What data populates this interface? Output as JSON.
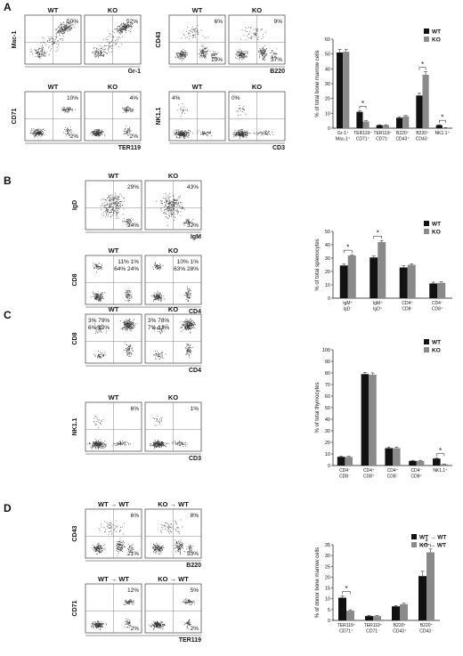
{
  "panels": [
    {
      "letter": "A",
      "rows": [
        {
          "plots": [
            {
              "title": "WT",
              "ylabel": "Mac-1",
              "xlabel": "",
              "quad_labels": [
                {
                  "pos": "tr",
                  "text": "50%"
                }
              ],
              "shape": "granulocyte"
            },
            {
              "title": "KO",
              "ylabel": "",
              "xlabel": "",
              "quad_labels": [
                {
                  "pos": "tr",
                  "text": "52%"
                }
              ],
              "shape": "granulocyte"
            }
          ],
          "shared_xlabel": "Gr-1"
        },
        {
          "plots": [
            {
              "title": "WT",
              "ylabel": "CD43",
              "xlabel": "",
              "quad_labels": [
                {
                  "pos": "tr",
                  "text": "6%"
                },
                {
                  "pos": "br",
                  "text": "19%"
                }
              ],
              "shape": "bcell"
            },
            {
              "title": "KO",
              "ylabel": "",
              "xlabel": "",
              "quad_labels": [
                {
                  "pos": "tr",
                  "text": "9%"
                },
                {
                  "pos": "br",
                  "text": "37%"
                }
              ],
              "shape": "bcell"
            }
          ],
          "shared_xlabel": "B220"
        },
        {
          "plots": [
            {
              "title": "WT",
              "ylabel": "CD71",
              "xlabel": "",
              "quad_labels": [
                {
                  "pos": "tr",
                  "text": "10%"
                },
                {
                  "pos": "br",
                  "text": "2%"
                }
              ],
              "shape": "erythroid"
            },
            {
              "title": "KO",
              "ylabel": "",
              "xlabel": "",
              "quad_labels": [
                {
                  "pos": "tr",
                  "text": "4%"
                },
                {
                  "pos": "br",
                  "text": "2%"
                }
              ],
              "shape": "erythroid"
            }
          ],
          "shared_xlabel": "TER119"
        },
        {
          "plots": [
            {
              "title": "WT",
              "ylabel": "NK1.1",
              "xlabel": "",
              "quad_labels": [
                {
                  "pos": "tl",
                  "text": "4%"
                }
              ],
              "shape": "nk"
            },
            {
              "title": "KO",
              "ylabel": "",
              "xlabel": "",
              "quad_labels": [
                {
                  "pos": "tl",
                  "text": "0%"
                }
              ],
              "shape": "nk"
            }
          ],
          "shared_xlabel": "CD3"
        }
      ]
    },
    {
      "letter": "B",
      "rows": [
        {
          "plots": [
            {
              "title": "WT",
              "ylabel": "IgD",
              "xlabel": "",
              "quad_labels": [
                {
                  "pos": "tr",
                  "text": "29%"
                },
                {
                  "pos": "br",
                  "text": "24%"
                }
              ],
              "shape": "igm"
            },
            {
              "title": "KO",
              "ylabel": "",
              "xlabel": "",
              "quad_labels": [
                {
                  "pos": "tr",
                  "text": "43%"
                },
                {
                  "pos": "br",
                  "text": "32%"
                }
              ],
              "shape": "igm"
            }
          ],
          "shared_xlabel": "IgM"
        },
        {
          "plots": [
            {
              "title": "WT",
              "ylabel": "CD8",
              "xlabel": "",
              "quad_labels": [
                {
                  "pos": "tr4",
                  "text": "11%  1%"
                },
                {
                  "pos": "tr4b",
                  "text": "64%  24%"
                }
              ],
              "shape": "spleen_cd4cd8"
            },
            {
              "title": "KO",
              "ylabel": "",
              "xlabel": "",
              "quad_labels": [
                {
                  "pos": "tr4",
                  "text": "10%  1%"
                },
                {
                  "pos": "tr4b",
                  "text": "63%  28%"
                }
              ],
              "shape": "spleen_cd4cd8"
            }
          ],
          "shared_xlabel": "CD4"
        }
      ]
    },
    {
      "letter": "C",
      "rows": [
        {
          "plots": [
            {
              "title": "WT",
              "ylabel": "CD8",
              "xlabel": "",
              "quad_labels": [
                {
                  "pos": "tl4",
                  "text": "3%  79%"
                },
                {
                  "pos": "tl4b",
                  "text": "6%  12%"
                }
              ],
              "shape": "thymus"
            },
            {
              "title": "KO",
              "ylabel": "",
              "xlabel": "",
              "quad_labels": [
                {
                  "pos": "tl4",
                  "text": "3%  78%"
                },
                {
                  "pos": "tl4b",
                  "text": "7%  13%"
                }
              ],
              "shape": "thymus"
            }
          ],
          "shared_xlabel": "CD4"
        },
        {
          "plots": [
            {
              "title": "WT",
              "ylabel": "NK1.1",
              "xlabel": "",
              "quad_labels": [
                {
                  "pos": "tr",
                  "text": "6%"
                }
              ],
              "shape": "nk"
            },
            {
              "title": "KO",
              "ylabel": "",
              "xlabel": "",
              "quad_labels": [
                {
                  "pos": "tr",
                  "text": "1%"
                }
              ],
              "shape": "nk"
            }
          ],
          "shared_xlabel": "CD3"
        }
      ]
    },
    {
      "letter": "D",
      "rows": [
        {
          "plots": [
            {
              "title": "WT → WT",
              "ylabel": "CD43",
              "xlabel": "",
              "quad_labels": [
                {
                  "pos": "tr",
                  "text": "6%"
                },
                {
                  "pos": "br",
                  "text": "21%"
                }
              ],
              "shape": "bcell"
            },
            {
              "title": "KO → WT",
              "ylabel": "",
              "xlabel": "",
              "quad_labels": [
                {
                  "pos": "tr",
                  "text": "8%"
                },
                {
                  "pos": "br",
                  "text": "33%"
                }
              ],
              "shape": "bcell"
            }
          ],
          "shared_xlabel": "B220"
        },
        {
          "plots": [
            {
              "title": "WT → WT",
              "ylabel": "CD71",
              "xlabel": "",
              "quad_labels": [
                {
                  "pos": "tr",
                  "text": "12%"
                },
                {
                  "pos": "br",
                  "text": "2%"
                }
              ],
              "shape": "erythroid"
            },
            {
              "title": "KO → WT",
              "ylabel": "",
              "xlabel": "",
              "quad_labels": [
                {
                  "pos": "tr",
                  "text": "5%"
                },
                {
                  "pos": "br",
                  "text": "2%"
                }
              ],
              "shape": "erythroid"
            }
          ],
          "shared_xlabel": "TER119"
        }
      ]
    }
  ],
  "colors": {
    "wt": "#111111",
    "ko": "#8a8a8a",
    "dots": "#333333"
  },
  "chart_data": [
    {
      "id": "A",
      "type": "bar",
      "ylabel": "% of total bone marrow cells",
      "ylim": [
        0,
        60
      ],
      "yticks": [
        0,
        10,
        20,
        30,
        40,
        50,
        60
      ],
      "categories": [
        [
          "Gr-1⁺",
          "Mac-1⁺"
        ],
        [
          "TER119⁺",
          "CD71⁺"
        ],
        [
          "TER119⁺",
          "CD71⁻"
        ],
        [
          "B220⁺",
          "CD43⁺"
        ],
        [
          "B220⁺",
          "CD43⁻"
        ],
        [
          "NK1.1⁺"
        ]
      ],
      "series": [
        {
          "name": "WT",
          "values": [
            51,
            11,
            2,
            7,
            22,
            2
          ],
          "errors": [
            2,
            0.8,
            0.3,
            0.6,
            1.5,
            0.3
          ]
        },
        {
          "name": "KO",
          "values": [
            51.5,
            4.5,
            2,
            8,
            36,
            0.3
          ],
          "errors": [
            1.5,
            0.5,
            0.3,
            0.5,
            2,
            0.1
          ]
        }
      ],
      "significance": [
        1,
        4,
        5
      ],
      "legend": "top-right"
    },
    {
      "id": "B",
      "type": "bar",
      "ylabel": "% of total splenocytes",
      "ylim": [
        0,
        50
      ],
      "yticks": [
        0,
        10,
        20,
        30,
        40,
        50
      ],
      "categories": [
        [
          "IgM⁺",
          "IgD⁻"
        ],
        [
          "IgM⁺",
          "IgD⁺"
        ],
        [
          "CD4⁺",
          "CD8⁻"
        ],
        [
          "CD4⁻",
          "CD8⁺"
        ]
      ],
      "series": [
        {
          "name": "WT",
          "values": [
            24.5,
            30.5,
            23,
            11
          ],
          "errors": [
            1,
            1,
            1.2,
            1
          ]
        },
        {
          "name": "KO",
          "values": [
            32,
            42,
            25,
            11.5
          ],
          "errors": [
            0.6,
            1.2,
            0.8,
            0.8
          ]
        }
      ],
      "significance": [
        0,
        1
      ],
      "legend": "top-right"
    },
    {
      "id": "C",
      "type": "bar",
      "ylabel": "% of total thymocytes",
      "ylim": [
        0,
        100
      ],
      "yticks": [
        0,
        10,
        20,
        30,
        40,
        50,
        60,
        70,
        80,
        90,
        100
      ],
      "categories": [
        [
          "CD4⁻",
          "CD8⁻"
        ],
        [
          "CD4⁺",
          "CD8⁺"
        ],
        [
          "CD4⁺",
          "CD8⁻"
        ],
        [
          "CD4⁻",
          "CD8⁺"
        ],
        [
          "NK1.1⁺"
        ]
      ],
      "series": [
        {
          "name": "WT",
          "values": [
            7.5,
            79,
            15,
            4,
            6
          ],
          "errors": [
            0.5,
            1.5,
            1,
            0.5,
            0.4
          ]
        },
        {
          "name": "KO",
          "values": [
            7.5,
            78.5,
            15,
            4,
            1
          ],
          "errors": [
            0.5,
            1.5,
            1,
            0.5,
            0.2
          ]
        }
      ],
      "significance": [
        4
      ],
      "legend": "top-right"
    },
    {
      "id": "D",
      "type": "bar",
      "ylabel": "% of donor bone marrow cells",
      "ylim": [
        0,
        35
      ],
      "yticks": [
        0,
        5,
        10,
        15,
        20,
        25,
        30,
        35
      ],
      "categories": [
        [
          "TER119⁺",
          "CD71⁺"
        ],
        [
          "TER119⁺",
          "CD71⁻"
        ],
        [
          "B220⁺",
          "CD43⁺"
        ],
        [
          "B220⁺",
          "CD43⁻"
        ]
      ],
      "series": [
        {
          "name": "WT → WT",
          "values": [
            10.5,
            2,
            6.5,
            20.5
          ],
          "errors": [
            0.8,
            0.3,
            0.4,
            2.2
          ]
        },
        {
          "name": "KO → WT",
          "values": [
            4.5,
            2,
            7.5,
            31.5
          ],
          "errors": [
            0.4,
            0.3,
            0.4,
            1.5
          ]
        }
      ],
      "significance": [
        0,
        3
      ],
      "legend": "top-right"
    }
  ]
}
